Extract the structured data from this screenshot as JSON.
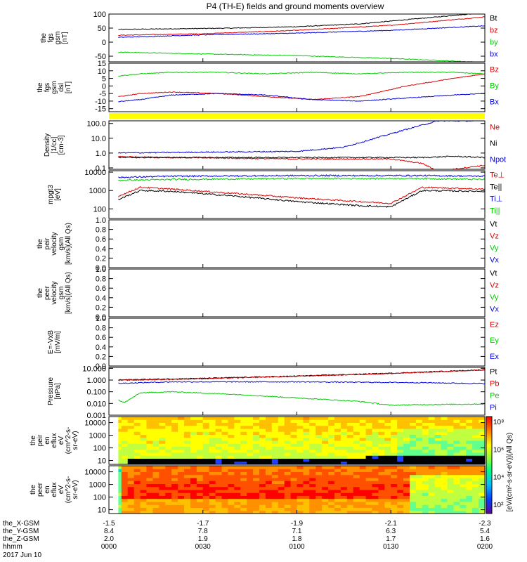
{
  "title": "P4 (TH-E) fields and ground moments overview",
  "colors": {
    "black": "#000000",
    "red": "#e00000",
    "green": "#00cc00",
    "blue": "#0000e0",
    "yellow": "#ffff00"
  },
  "chart_data": [
    {
      "id": "fgs",
      "type": "line",
      "ylabel": [
        "the",
        "fgs",
        "gsm",
        "[nT]"
      ],
      "ylim": [
        -70,
        100
      ],
      "yticks": [
        -50,
        0,
        50,
        100
      ],
      "series": [
        {
          "name": "Bt",
          "color": "black",
          "x": [
            0,
            40,
            60,
            80,
            100,
            120
          ],
          "y": [
            45,
            50,
            55,
            65,
            85,
            105
          ]
        },
        {
          "name": "bz",
          "color": "red",
          "x": [
            0,
            30,
            60,
            90,
            120
          ],
          "y": [
            24,
            30,
            42,
            60,
            90
          ]
        },
        {
          "name": "by",
          "color": "green",
          "x": [
            0,
            30,
            60,
            90,
            120
          ],
          "y": [
            -35,
            -42,
            -48,
            -58,
            -72
          ]
        },
        {
          "name": "bx",
          "color": "blue",
          "x": [
            0,
            30,
            60,
            90,
            120
          ],
          "y": [
            16,
            26,
            32,
            42,
            58
          ]
        }
      ]
    },
    {
      "id": "fgs-dsl",
      "type": "line",
      "ylabel": [
        "the",
        "fgs",
        "gsm",
        "dsl",
        "[nT]"
      ],
      "ylim": [
        -17,
        15
      ],
      "yticks": [
        -15,
        -10,
        -5,
        0,
        5,
        10,
        15
      ],
      "series": [
        {
          "name": "Bz",
          "color": "red",
          "x": [
            0,
            10,
            20,
            35,
            50,
            65,
            80,
            95,
            110,
            120
          ],
          "y": [
            -8,
            -5,
            -4,
            -5,
            -7,
            -9,
            -7,
            0,
            5,
            8
          ]
        },
        {
          "name": "By",
          "color": "green",
          "x": [
            0,
            10,
            20,
            35,
            50,
            65,
            80,
            95,
            110,
            120
          ],
          "y": [
            6,
            8,
            9,
            9,
            8,
            9,
            8,
            9,
            9,
            8
          ]
        },
        {
          "name": "Bx",
          "color": "blue",
          "x": [
            0,
            10,
            20,
            35,
            50,
            65,
            80,
            95,
            110,
            120
          ],
          "y": [
            -11,
            -9,
            -6,
            -5,
            -6,
            -9,
            -10,
            -8,
            -6,
            -5
          ]
        }
      ]
    },
    {
      "id": "density",
      "type": "line",
      "scale": "log",
      "ylabel": [
        "Density",
        "[1/cc]",
        "[cm-3]"
      ],
      "ylim": [
        0.08,
        150
      ],
      "yticks": [
        "0.1",
        "1.0",
        "10.0",
        "100.0"
      ],
      "series": [
        {
          "name": "Ne",
          "color": "red",
          "x": [
            0,
            20,
            60,
            90,
            100,
            105,
            120
          ],
          "y": [
            0.6,
            0.5,
            0.4,
            0.4,
            0.2,
            0.06,
            0.15
          ]
        },
        {
          "name": "Ni",
          "color": "black",
          "x": [
            0,
            20,
            60,
            90,
            100,
            110,
            120
          ],
          "y": [
            0.5,
            0.5,
            0.5,
            0.5,
            0.5,
            0.6,
            0.5
          ]
        },
        {
          "name": "Npot",
          "color": "blue",
          "x": [
            0,
            20,
            60,
            75,
            85,
            95,
            105,
            120
          ],
          "y": [
            1.0,
            1.1,
            1.3,
            2.5,
            10,
            40,
            150,
            150
          ]
        }
      ]
    },
    {
      "id": "temp",
      "type": "line",
      "scale": "log",
      "ylabel": [
        "mpgt3",
        "[eV]"
      ],
      "ylim": [
        30,
        12000
      ],
      "yticks": [
        "100",
        "1000",
        "10000"
      ],
      "series": [
        {
          "name": "Te⊥",
          "color": "red",
          "x": [
            0,
            10,
            20,
            40,
            60,
            80,
            90,
            100,
            120
          ],
          "y": [
            300,
            1500,
            1200,
            700,
            400,
            250,
            200,
            1500,
            1200
          ]
        },
        {
          "name": "Te||",
          "color": "black",
          "x": [
            0,
            10,
            20,
            40,
            60,
            80,
            90,
            100,
            120
          ],
          "y": [
            200,
            1000,
            900,
            500,
            250,
            150,
            130,
            1000,
            900
          ]
        },
        {
          "name": "Ti⊥",
          "color": "blue",
          "x": [
            0,
            20,
            60,
            100,
            120
          ],
          "y": [
            5000,
            6000,
            6500,
            6500,
            6000
          ]
        },
        {
          "name": "Ti||",
          "color": "green",
          "x": [
            0,
            20,
            60,
            100,
            120
          ],
          "y": [
            3500,
            4000,
            4500,
            4500,
            4000
          ]
        }
      ]
    },
    {
      "id": "peir-vel",
      "type": "line",
      "ylabel": [
        "the",
        "peir",
        "velocity",
        "gsm",
        "[km/s](All Qs)"
      ],
      "ylim": [
        0,
        1
      ],
      "yticks": [
        "0.0",
        "0.2",
        "0.4",
        "0.6",
        "0.8",
        "1.0"
      ],
      "series": [
        {
          "name": "Vt",
          "color": "black"
        },
        {
          "name": "Vz",
          "color": "red"
        },
        {
          "name": "Vy",
          "color": "green"
        },
        {
          "name": "Vx",
          "color": "blue"
        }
      ]
    },
    {
      "id": "peer-vel",
      "type": "line",
      "ylabel": [
        "the",
        "peer",
        "velocity",
        "gsm",
        "[km/s](All Qs)"
      ],
      "ylim": [
        0,
        1
      ],
      "yticks": [
        "0.0",
        "0.2",
        "0.4",
        "0.6",
        "0.8",
        "1.0"
      ],
      "series": [
        {
          "name": "Vt",
          "color": "black"
        },
        {
          "name": "Vz",
          "color": "red"
        },
        {
          "name": "Vy",
          "color": "green"
        },
        {
          "name": "Vx",
          "color": "blue"
        }
      ]
    },
    {
      "id": "efield",
      "type": "line",
      "ylabel": [
        "E=-VxB",
        "[mV/m]"
      ],
      "ylim": [
        0,
        1
      ],
      "yticks": [
        "0.0",
        "0.2",
        "0.4",
        "0.6",
        "0.8",
        "1.0"
      ],
      "series": [
        {
          "name": "Ez",
          "color": "red"
        },
        {
          "name": "Ey",
          "color": "green"
        },
        {
          "name": "Ex",
          "color": "blue"
        }
      ]
    },
    {
      "id": "pressure",
      "type": "line",
      "scale": "log",
      "ylabel": [
        "Pressure",
        "[nPa]"
      ],
      "ylim": [
        0.001,
        12
      ],
      "yticks": [
        "0.001",
        "0.010",
        "0.100",
        "1.000",
        "10.000"
      ],
      "series": [
        {
          "name": "Pt",
          "color": "black",
          "x": [
            0,
            30,
            60,
            90,
            120
          ],
          "y": [
            1.0,
            1.4,
            2.2,
            3.8,
            7.5
          ]
        },
        {
          "name": "Pb",
          "color": "red",
          "x": [
            0,
            30,
            60,
            90,
            120
          ],
          "y": [
            0.9,
            1.3,
            2.1,
            3.6,
            7.2
          ]
        },
        {
          "name": "Pe",
          "color": "green",
          "x": [
            0,
            5,
            10,
            20,
            40,
            60,
            80,
            90,
            100,
            120
          ],
          "y": [
            0.04,
            0.012,
            0.08,
            0.1,
            0.06,
            0.03,
            0.015,
            0.007,
            0.008,
            0.009
          ]
        },
        {
          "name": "Pi",
          "color": "blue",
          "x": [
            0,
            20,
            60,
            100,
            120
          ],
          "y": [
            0.5,
            0.7,
            0.7,
            0.6,
            0.5
          ]
        }
      ]
    },
    {
      "id": "peir-spec",
      "type": "heatmap",
      "ylabel": [
        "the",
        "peir",
        "en",
        "eflux",
        "eV",
        "(cm^2-s-",
        "sr-eV)"
      ],
      "ylim": [
        5,
        30000
      ],
      "yticks": [
        "10",
        "100",
        "1000",
        "10000"
      ]
    },
    {
      "id": "peer-spec",
      "type": "heatmap",
      "ylabel": [
        "the",
        "peer",
        "en",
        "eflux",
        "eV",
        "(cm^2-s-",
        "sr-eV)"
      ],
      "ylim": [
        5,
        30000
      ],
      "yticks": [
        "10",
        "100",
        "1000",
        "10000"
      ]
    }
  ],
  "colorbar": {
    "ticks": [
      "10⁸",
      "10⁶",
      "10⁴",
      "10²"
    ],
    "label": "[eV/(cm²-s-sr-eV)](All Qs)"
  },
  "xaxis": {
    "rows": [
      {
        "label": "the_X-GSM",
        "values": [
          "-1.5",
          "-1.7",
          "-1.9",
          "-2.1",
          "-2.3"
        ]
      },
      {
        "label": "the_Y-GSM",
        "values": [
          "8.4",
          "7.8",
          "7.1",
          "6.3",
          "5.4"
        ]
      },
      {
        "label": "the_Z-GSM",
        "values": [
          "2.0",
          "1.9",
          "1.8",
          "1.7",
          "1.6"
        ]
      },
      {
        "label": "hhmm",
        "values": [
          "0000",
          "0030",
          "0100",
          "0130",
          "0200"
        ]
      }
    ],
    "date": "2017 Jun 10"
  }
}
